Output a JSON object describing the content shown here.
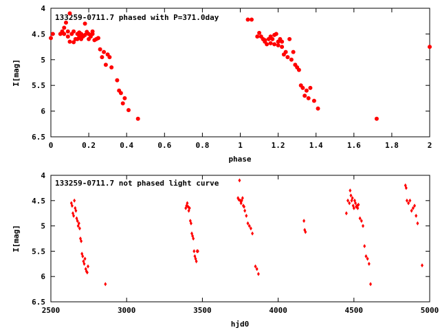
{
  "chart_data": [
    {
      "type": "scatter",
      "title": "133259-0711.7 phased with P=371.0day",
      "xlabel": "phase",
      "ylabel": "I[mag]",
      "xlim": [
        0,
        2
      ],
      "ylim": [
        6.5,
        4
      ],
      "y_inverted": true,
      "grid": false,
      "xticks": [
        "0",
        "0.2",
        "0.4",
        "0.6",
        "0.8",
        "1",
        "1.2",
        "1.4",
        "1.6",
        "1.8",
        "2"
      ],
      "yticks": [
        "4",
        "4.5",
        "5",
        "5.5",
        "6",
        "6.5"
      ],
      "marker": "filled-circle",
      "color": "#ff0000",
      "series": [
        {
          "x": [
            0.0,
            0.01,
            0.05,
            0.06,
            0.07,
            0.07,
            0.08,
            0.09,
            0.1,
            0.11,
            0.12,
            0.13,
            0.14,
            0.15,
            0.15,
            0.16,
            0.17,
            0.18,
            0.19,
            0.2,
            0.2,
            0.21,
            0.22,
            0.23,
            0.24,
            0.25,
            0.26,
            0.27,
            0.28,
            0.29,
            0.3,
            0.31,
            0.32,
            0.35,
            0.36,
            0.37,
            0.38,
            0.39,
            0.41,
            0.46,
            0.1,
            0.12,
            0.16,
            0.18,
            0.09,
            0.14,
            0.22,
            0.25,
            1.04,
            1.06,
            1.09,
            1.1,
            1.11,
            1.12,
            1.13,
            1.14,
            1.15,
            1.16,
            1.17,
            1.18,
            1.19,
            1.2,
            1.21,
            1.22,
            1.23,
            1.24,
            1.25,
            1.26,
            1.27,
            1.28,
            1.29,
            1.3,
            1.31,
            1.32,
            1.33,
            1.34,
            1.35,
            1.36,
            1.37,
            1.39,
            1.41,
            1.18,
            1.16,
            1.2,
            1.22,
            1.13,
            1.72,
            2.0
          ],
          "y": [
            4.58,
            4.5,
            4.5,
            4.45,
            4.5,
            4.38,
            4.28,
            4.45,
            4.1,
            4.5,
            4.66,
            4.6,
            4.5,
            4.47,
            4.55,
            4.6,
            4.55,
            4.3,
            4.46,
            4.5,
            4.6,
            4.55,
            4.5,
            4.62,
            4.6,
            4.58,
            4.8,
            4.95,
            4.85,
            5.1,
            4.9,
            4.95,
            5.15,
            5.4,
            5.6,
            5.65,
            5.85,
            5.75,
            5.98,
            6.15,
            4.65,
            4.45,
            4.5,
            4.52,
            4.55,
            4.6,
            4.45,
            4.58,
            4.22,
            4.22,
            4.55,
            4.48,
            4.55,
            4.6,
            4.65,
            4.7,
            4.6,
            4.55,
            4.6,
            4.52,
            4.5,
            4.65,
            4.6,
            4.75,
            4.9,
            4.85,
            4.95,
            4.6,
            5.0,
            4.85,
            5.1,
            5.15,
            5.2,
            5.5,
            5.55,
            5.7,
            5.6,
            5.75,
            5.55,
            5.8,
            5.95,
            4.7,
            4.68,
            4.72,
            4.65,
            4.62,
            6.15,
            4.75
          ]
        }
      ]
    },
    {
      "type": "scatter",
      "title": "133259-0711.7 not phased light curve",
      "xlabel": "hjd0",
      "ylabel": "I[mag]",
      "xlim": [
        2500,
        5000
      ],
      "ylim": [
        6.5,
        4
      ],
      "y_inverted": true,
      "grid": false,
      "xticks": [
        "2500",
        "3000",
        "3500",
        "4000",
        "4500",
        "5000"
      ],
      "yticks": [
        "4",
        "4.5",
        "5",
        "5.5",
        "6",
        "6.5"
      ],
      "marker": "small-diamond",
      "color": "#ff0000",
      "series": [
        {
          "x": [
            2635,
            2640,
            2645,
            2650,
            2655,
            2660,
            2665,
            2670,
            2675,
            2680,
            2685,
            2690,
            2695,
            2700,
            2705,
            2710,
            2715,
            2720,
            2725,
            2730,
            2735,
            2740,
            2745,
            2860,
            3390,
            3395,
            3400,
            3405,
            3410,
            3415,
            3420,
            3425,
            3430,
            3435,
            3440,
            3445,
            3450,
            3455,
            3460,
            3465,
            3470,
            3735,
            3740,
            3745,
            3750,
            3755,
            3760,
            3765,
            3770,
            3775,
            3780,
            3790,
            3800,
            3810,
            3820,
            3830,
            3850,
            3860,
            3870,
            4170,
            4175,
            4180,
            4450,
            4460,
            4470,
            4475,
            4480,
            4485,
            4490,
            4495,
            4500,
            4505,
            4510,
            4515,
            4520,
            4525,
            4530,
            4540,
            4550,
            4560,
            4570,
            4580,
            4590,
            4600,
            4610,
            4840,
            4845,
            4850,
            4860,
            4870,
            4880,
            4890,
            4900,
            4910,
            4920,
            4950
          ],
          "y": [
            4.55,
            4.6,
            4.75,
            4.8,
            4.5,
            4.65,
            4.7,
            4.85,
            4.9,
            5.0,
            4.95,
            5.05,
            5.25,
            5.3,
            5.55,
            5.6,
            5.7,
            5.75,
            5.65,
            5.85,
            5.9,
            5.92,
            5.8,
            6.15,
            4.65,
            4.6,
            4.55,
            4.62,
            4.7,
            4.65,
            4.9,
            4.95,
            5.15,
            5.2,
            5.25,
            5.5,
            5.6,
            5.65,
            5.7,
            5.5,
            5.5,
            4.45,
            4.48,
            4.1,
            4.5,
            4.55,
            4.5,
            4.45,
            4.6,
            4.62,
            4.7,
            4.8,
            4.95,
            5.0,
            5.05,
            5.15,
            5.8,
            5.85,
            5.95,
            4.9,
            5.08,
            5.12,
            4.75,
            4.5,
            4.55,
            4.3,
            4.4,
            4.5,
            4.45,
            4.6,
            4.65,
            4.5,
            4.55,
            4.62,
            4.6,
            4.65,
            4.58,
            4.85,
            4.9,
            5.0,
            5.4,
            5.6,
            5.65,
            5.75,
            6.15,
            4.2,
            4.25,
            4.5,
            4.55,
            4.5,
            4.7,
            4.65,
            4.6,
            4.8,
            4.95,
            5.78
          ]
        }
      ]
    }
  ]
}
